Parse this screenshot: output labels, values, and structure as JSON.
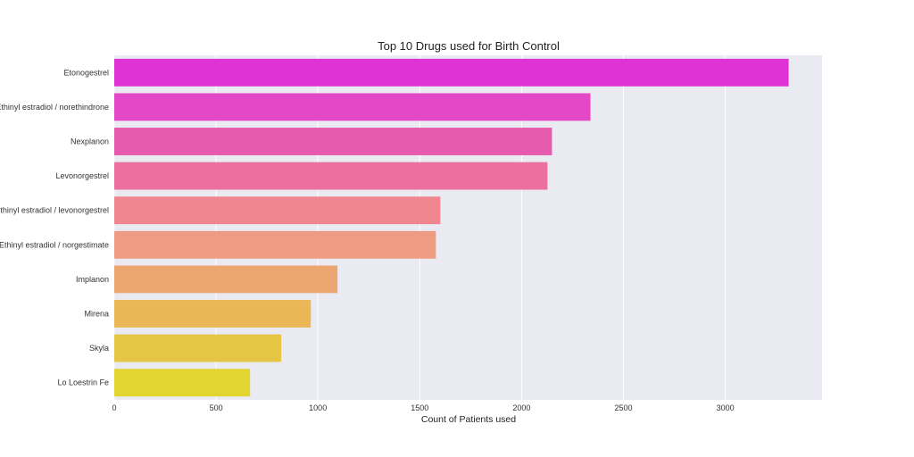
{
  "chart_data": {
    "type": "bar",
    "orientation": "horizontal",
    "title": "Top 10 Drugs used for Birth Control",
    "xlabel": "Count of Patients used",
    "ylabel": "",
    "categories": [
      "Etonogestrel",
      "Ethinyl estradiol / norethindrone",
      "Nexplanon",
      "Levonorgestrel",
      "Ethinyl estradiol / levonorgestrel",
      "Ethinyl estradiol / norgestimate",
      "Implanon",
      "Mirena",
      "Skyla",
      "Lo Loestrin Fe"
    ],
    "values": [
      3311,
      2338,
      2149,
      2127,
      1601,
      1579,
      1096,
      965,
      820,
      667
    ],
    "colors": [
      "#e033d6",
      "#e548c6",
      "#e75aae",
      "#ec6fa0",
      "#ef8690",
      "#ef9a82",
      "#eca770",
      "#e9b756",
      "#e5c544",
      "#e2d531"
    ],
    "xlim": [
      0,
      3475
    ],
    "xticks": [
      0,
      500,
      1000,
      1500,
      2000,
      2500,
      3000
    ],
    "grid": true,
    "background": "#eaeaf2"
  }
}
